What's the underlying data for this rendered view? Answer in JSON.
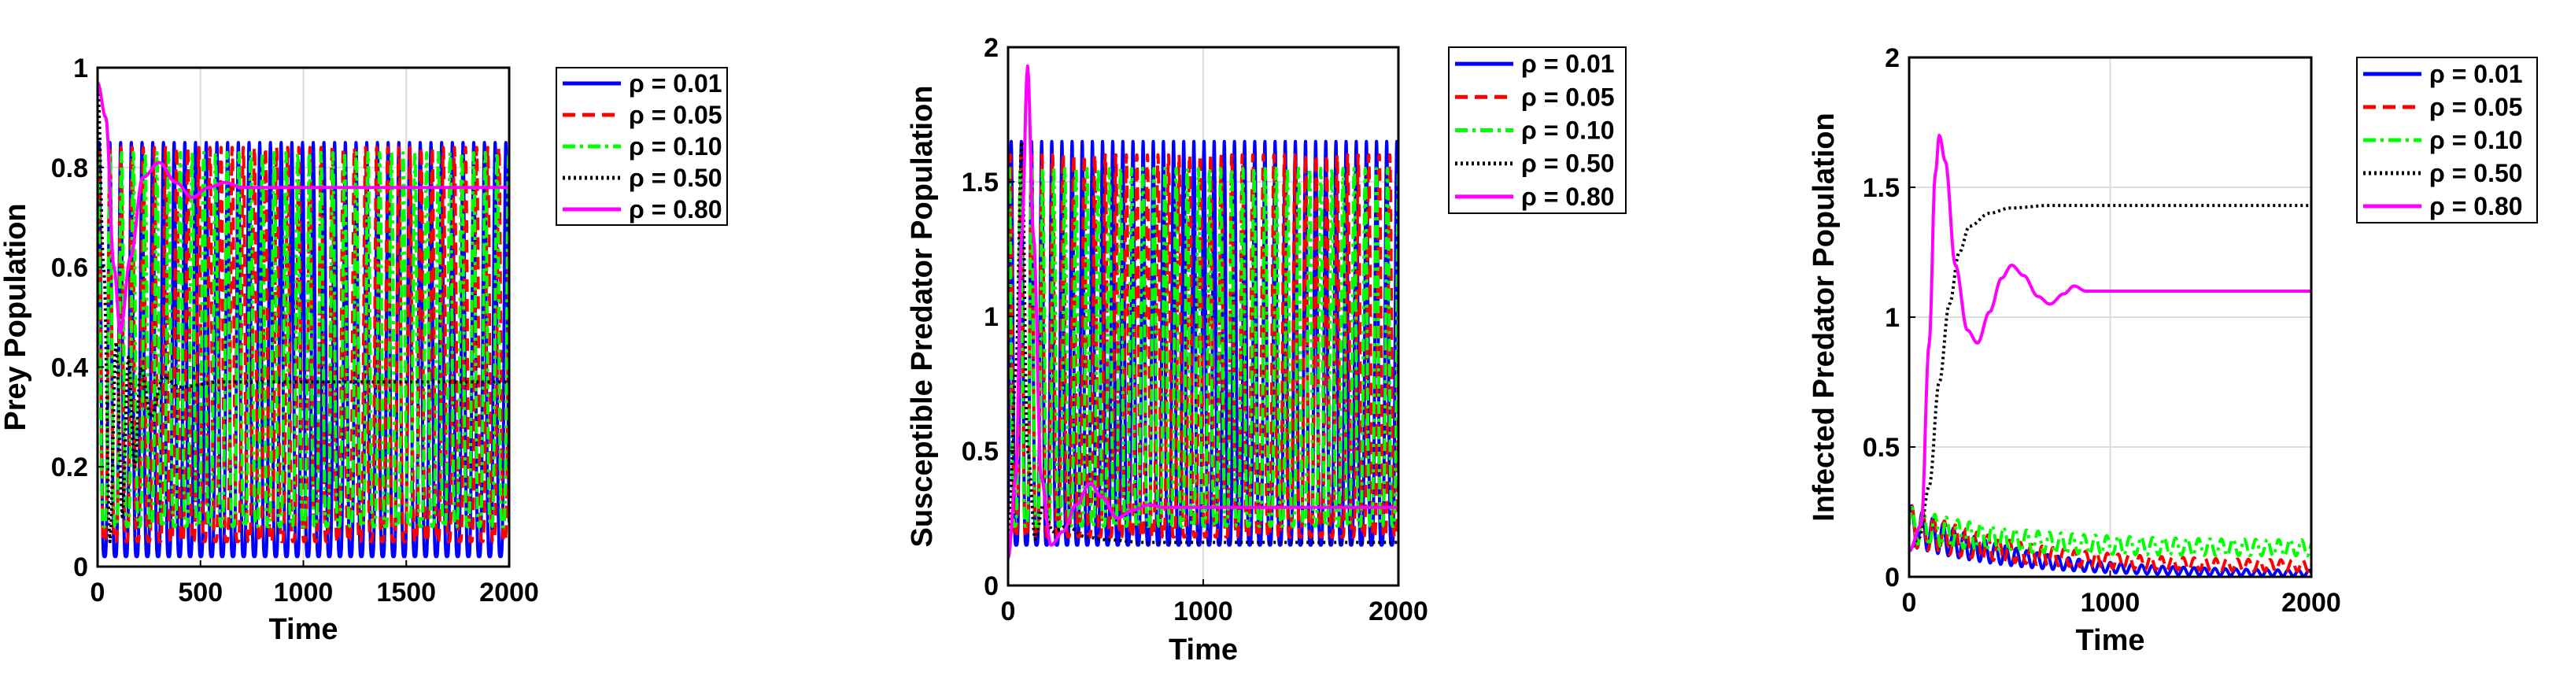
{
  "chart_data": [
    {
      "type": "line",
      "title": "",
      "xlabel": "Time",
      "ylabel": "Prey Population",
      "xlim": [
        0,
        2000
      ],
      "ylim": [
        0,
        1
      ],
      "xticks": [
        0,
        500,
        1000,
        1500,
        2000
      ],
      "xtick_labels": [
        "0",
        "500",
        "1000",
        "1500",
        "2000"
      ],
      "yticks": [
        0,
        0.2,
        0.4,
        0.6,
        0.8,
        1
      ],
      "ytick_labels": [
        "0",
        "0.2",
        "0.4",
        "0.6",
        "0.8",
        "1"
      ],
      "grid": true,
      "legend_position": "outside-right",
      "series": [
        {
          "name": "ρ = 0.01",
          "color": "#0000ff",
          "style": "solid",
          "kind": "osc",
          "period": 52,
          "min": 0.02,
          "max": 0.85,
          "t0": 60
        },
        {
          "name": "ρ = 0.05",
          "color": "#ff0000",
          "style": "dash",
          "kind": "osc",
          "period": 54,
          "min": 0.05,
          "max": 0.84,
          "t0": 60
        },
        {
          "name": "ρ = 0.10",
          "color": "#00ff00",
          "style": "dashdot",
          "kind": "osc",
          "period": 57,
          "min": 0.08,
          "max": 0.83,
          "t0": 60
        },
        {
          "name": "ρ = 0.50",
          "color": "#000000",
          "style": "dot",
          "kind": "damped",
          "points": [
            [
              0,
              0.97
            ],
            [
              30,
              0.6
            ],
            [
              60,
              0.05
            ],
            [
              90,
              0.45
            ],
            [
              120,
              0.1
            ],
            [
              150,
              0.42
            ],
            [
              180,
              0.2
            ],
            [
              210,
              0.4
            ],
            [
              260,
              0.3
            ],
            [
              320,
              0.38
            ],
            [
              400,
              0.36
            ],
            [
              600,
              0.37
            ],
            [
              2000,
              0.37
            ]
          ]
        },
        {
          "name": "ρ = 0.80",
          "color": "#ff00ff",
          "style": "solid",
          "kind": "damped",
          "points": [
            [
              0,
              0.97
            ],
            [
              40,
              0.9
            ],
            [
              80,
              0.6
            ],
            [
              110,
              0.47
            ],
            [
              160,
              0.62
            ],
            [
              220,
              0.78
            ],
            [
              300,
              0.81
            ],
            [
              380,
              0.77
            ],
            [
              460,
              0.74
            ],
            [
              540,
              0.76
            ],
            [
              620,
              0.77
            ],
            [
              700,
              0.76
            ],
            [
              900,
              0.76
            ],
            [
              2000,
              0.76
            ]
          ]
        }
      ]
    },
    {
      "type": "line",
      "title": "",
      "xlabel": "Time",
      "ylabel": "Susceptible Predator Population",
      "xlim": [
        0,
        2000
      ],
      "ylim": [
        0,
        2
      ],
      "xticks": [
        0,
        1000,
        2000
      ],
      "xtick_labels": [
        "0",
        "1000",
        "2000"
      ],
      "yticks": [
        0,
        0.5,
        1,
        1.5,
        2
      ],
      "ytick_labels": [
        "0",
        "0.5",
        "1",
        "1.5",
        "2"
      ],
      "grid": true,
      "legend_position": "outside-right",
      "series": [
        {
          "name": "ρ = 0.01",
          "color": "#0000ff",
          "style": "solid",
          "kind": "osc",
          "period": 52,
          "min": 0.15,
          "max": 1.65,
          "t0": 120
        },
        {
          "name": "ρ = 0.05",
          "color": "#ff0000",
          "style": "dash",
          "kind": "osc",
          "period": 54,
          "min": 0.18,
          "max": 1.6,
          "t0": 120
        },
        {
          "name": "ρ = 0.10",
          "color": "#00ff00",
          "style": "dashdot",
          "kind": "osc",
          "period": 57,
          "min": 0.22,
          "max": 1.55,
          "t0": 120
        },
        {
          "name": "ρ = 0.50",
          "color": "#000000",
          "style": "dot",
          "kind": "damped",
          "points": [
            [
              0,
              0.1
            ],
            [
              40,
              0.8
            ],
            [
              70,
              1.65
            ],
            [
              100,
              0.5
            ],
            [
              140,
              0.17
            ],
            [
              180,
              0.3
            ],
            [
              230,
              0.2
            ],
            [
              300,
              0.22
            ],
            [
              400,
              0.18
            ],
            [
              500,
              0.17
            ],
            [
              700,
              0.16
            ],
            [
              2000,
              0.16
            ]
          ]
        },
        {
          "name": "ρ = 0.80",
          "color": "#ff00ff",
          "style": "solid",
          "kind": "damped",
          "points": [
            [
              0,
              0.1
            ],
            [
              40,
              0.4
            ],
            [
              70,
              1.3
            ],
            [
              100,
              1.93
            ],
            [
              130,
              1.3
            ],
            [
              170,
              0.4
            ],
            [
              220,
              0.15
            ],
            [
              280,
              0.2
            ],
            [
              350,
              0.3
            ],
            [
              420,
              0.38
            ],
            [
              480,
              0.33
            ],
            [
              560,
              0.25
            ],
            [
              640,
              0.28
            ],
            [
              720,
              0.3
            ],
            [
              800,
              0.29
            ],
            [
              1000,
              0.29
            ],
            [
              2000,
              0.29
            ]
          ]
        }
      ]
    },
    {
      "type": "line",
      "title": "",
      "xlabel": "Time",
      "ylabel": "Infected Predator Population",
      "xlim": [
        0,
        2000
      ],
      "ylim": [
        0,
        2
      ],
      "xticks": [
        0,
        1000,
        2000
      ],
      "xtick_labels": [
        "0",
        "1000",
        "2000"
      ],
      "yticks": [
        0,
        0.5,
        1,
        1.5,
        2
      ],
      "ytick_labels": [
        "0",
        "0.5",
        "1",
        "1.5",
        "2"
      ],
      "grid": true,
      "legend_position": "outside-right",
      "series": [
        {
          "name": "ρ = 0.01",
          "color": "#0000ff",
          "style": "solid",
          "kind": "decay",
          "period": 52,
          "start": 0.2,
          "end": 0.01,
          "amp0": 0.08,
          "amp1": 0.01
        },
        {
          "name": "ρ = 0.05",
          "color": "#ff0000",
          "style": "dash",
          "kind": "decay",
          "period": 54,
          "start": 0.2,
          "end": 0.04,
          "amp0": 0.08,
          "amp1": 0.02
        },
        {
          "name": "ρ = 0.10",
          "color": "#00ff00",
          "style": "dashdot",
          "kind": "decay",
          "period": 57,
          "start": 0.2,
          "end": 0.11,
          "amp0": 0.07,
          "amp1": 0.03
        },
        {
          "name": "ρ = 0.50",
          "color": "#000000",
          "style": "dot",
          "kind": "damped",
          "points": [
            [
              0,
              0.1
            ],
            [
              50,
              0.15
            ],
            [
              100,
              0.35
            ],
            [
              150,
              0.75
            ],
            [
              200,
              1.05
            ],
            [
              250,
              1.25
            ],
            [
              300,
              1.35
            ],
            [
              400,
              1.4
            ],
            [
              500,
              1.42
            ],
            [
              700,
              1.43
            ],
            [
              2000,
              1.43
            ]
          ]
        },
        {
          "name": "ρ = 0.80",
          "color": "#ff00ff",
          "style": "solid",
          "kind": "damped",
          "points": [
            [
              0,
              0.1
            ],
            [
              60,
              0.2
            ],
            [
              100,
              0.9
            ],
            [
              130,
              1.55
            ],
            [
              150,
              1.7
            ],
            [
              180,
              1.6
            ],
            [
              230,
              1.2
            ],
            [
              290,
              0.95
            ],
            [
              340,
              0.9
            ],
            [
              400,
              1.02
            ],
            [
              460,
              1.15
            ],
            [
              510,
              1.2
            ],
            [
              570,
              1.16
            ],
            [
              640,
              1.08
            ],
            [
              700,
              1.05
            ],
            [
              770,
              1.09
            ],
            [
              820,
              1.12
            ],
            [
              880,
              1.1
            ],
            [
              950,
              1.1
            ],
            [
              1100,
              1.1
            ],
            [
              2000,
              1.1
            ]
          ]
        }
      ]
    }
  ]
}
